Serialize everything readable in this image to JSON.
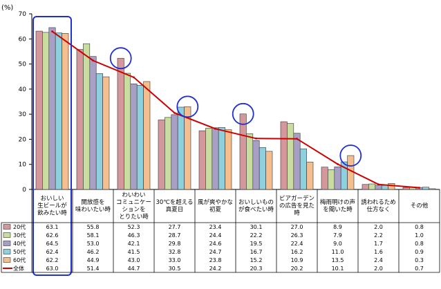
{
  "chart_data": {
    "type": "bar",
    "ylabel": "(%)",
    "ylim": [
      0,
      70
    ],
    "yticks": [
      0,
      10,
      20,
      30,
      40,
      50,
      60,
      70
    ],
    "grid": false,
    "categories": [
      [
        "おいしい",
        "生ビールが",
        "飲みたい時"
      ],
      [
        "開放感を",
        "味わいたい時"
      ],
      [
        "わいわい",
        "コミュニケー",
        "ションを",
        "とりたい時"
      ],
      [
        "30℃を超える",
        "真夏日"
      ],
      [
        "風が爽やかな",
        "初夏"
      ],
      [
        "おいしいもの",
        "が食べたい時"
      ],
      [
        "ビアガーデン",
        "の広告を見た",
        "時"
      ],
      [
        "梅雨明けの声",
        "を聞いた時"
      ],
      [
        "誘われるため",
        "仕方なく"
      ],
      [
        "その他"
      ]
    ],
    "series": [
      {
        "name": "20代",
        "color": "#D4979B",
        "values": [
          63.1,
          55.8,
          52.3,
          27.7,
          23.4,
          30.1,
          27.0,
          8.9,
          2.0,
          0.8
        ],
        "labels": [
          "63.1",
          "55.8",
          "52.3",
          "27.7",
          "23.4",
          "30.1",
          "27.0",
          "8.9",
          "2.0",
          "0.8"
        ]
      },
      {
        "name": "30代",
        "color": "#C9DDA0",
        "values": [
          62.6,
          58.1,
          46.3,
          28.7,
          24.4,
          22.2,
          26.3,
          7.9,
          2.2,
          1.0
        ],
        "labels": [
          "62.6",
          "58.1",
          "46.3",
          "28.7",
          "24.4",
          "22.2",
          "26.3",
          "7.9",
          "2.2",
          "1.0"
        ]
      },
      {
        "name": "40代",
        "color": "#A79FC4",
        "values": [
          64.5,
          53.0,
          42.1,
          29.8,
          24.6,
          19.5,
          22.4,
          9.0,
          1.7,
          0.8
        ],
        "labels": [
          "64.5",
          "53.0",
          "42.1",
          "29.8",
          "24.6",
          "19.5",
          "22.4",
          "9.0",
          "1.7",
          "0.8"
        ]
      },
      {
        "name": "50代",
        "color": "#8FD0DF",
        "values": [
          62.4,
          46.2,
          41.5,
          32.8,
          24.7,
          16.7,
          16.2,
          11.0,
          1.6,
          0.9
        ],
        "labels": [
          "62.4",
          "46.2",
          "41.5",
          "32.8",
          "24.7",
          "16.7",
          "16.2",
          "11.0",
          "1.6",
          "0.9"
        ]
      },
      {
        "name": "60代",
        "color": "#F5BE8E",
        "values": [
          62.2,
          44.9,
          43.0,
          33.0,
          23.8,
          15.2,
          10.9,
          13.5,
          2.4,
          0.3
        ],
        "labels": [
          "62.2",
          "44.9",
          "43.0",
          "33.0",
          "23.8",
          "15.2",
          "10.9",
          "13.5",
          "2.4",
          "0.3"
        ]
      }
    ],
    "line": {
      "name": "全体",
      "color": "#CC0000",
      "values": [
        63.0,
        51.4,
        44.7,
        30.5,
        24.2,
        20.3,
        20.2,
        10.1,
        2.0,
        0.7
      ],
      "labels": [
        "63.0",
        "51.4",
        "44.7",
        "30.5",
        "24.2",
        "20.3",
        "20.2",
        "10.1",
        "2.0",
        "0.7"
      ]
    },
    "highlight_color": "#1F2FD0",
    "circled": [
      {
        "category": 2,
        "value": 52.3
      },
      {
        "category": 3,
        "value": 33.0
      },
      {
        "category": 5,
        "value": 30.1
      },
      {
        "category": 7,
        "value": 13.5
      }
    ],
    "highlighted_column": 0
  }
}
